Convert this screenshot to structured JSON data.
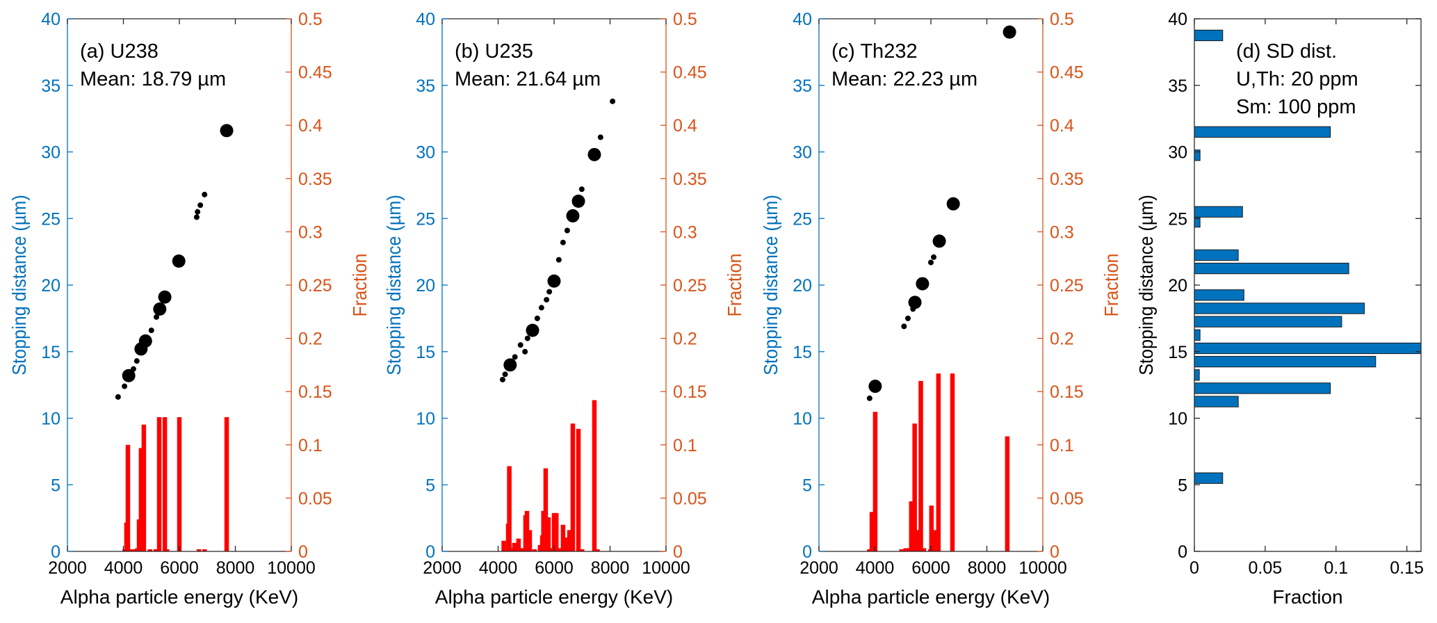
{
  "colors": {
    "left_axis": "#0072BD",
    "right_axis": "#D95319",
    "hist_bar": "#FF0000",
    "scatter": "#000000",
    "sd_bar": "#0072BD",
    "frame": "#262626"
  },
  "chart_data": [
    {
      "id": "a",
      "type": "scatter+bar",
      "annotation": [
        "(a)  U238",
        "Mean: 18.79 µm"
      ],
      "xlabel": "Alpha particle energy (KeV)",
      "ylabel": "Stopping distance (µm)",
      "y2label": "Fraction",
      "xlim": [
        2000,
        10000
      ],
      "ylim": [
        0,
        40
      ],
      "y2lim": [
        0,
        0.5
      ],
      "xticks": [
        2000,
        4000,
        6000,
        8000,
        10000
      ],
      "xtick_labels": [
        "2000",
        "4000",
        "6000",
        "8000",
        "10000"
      ],
      "yticks": [
        0,
        5,
        10,
        15,
        20,
        25,
        30,
        35,
        40
      ],
      "ytick_labels": [
        "0",
        "5",
        "10",
        "15",
        "20",
        "25",
        "30",
        "35",
        "40"
      ],
      "y2ticks": [
        0,
        0.05,
        0.1,
        0.15,
        0.2,
        0.25,
        0.3,
        0.35,
        0.4,
        0.45,
        0.5
      ],
      "y2tick_labels": [
        "0",
        "0.05",
        "0.1",
        "0.15",
        "0.2",
        "0.25",
        "0.3",
        "0.35",
        "0.4",
        "0.45",
        "0.5"
      ],
      "scatter": [
        {
          "x": 3810,
          "y": 11.6,
          "size": "small"
        },
        {
          "x": 4040,
          "y": 12.4,
          "size": "small"
        },
        {
          "x": 4190,
          "y": 13.2,
          "size": "large"
        },
        {
          "x": 4360,
          "y": 13.7,
          "size": "small"
        },
        {
          "x": 4480,
          "y": 14.3,
          "size": "small"
        },
        {
          "x": 4630,
          "y": 15.2,
          "size": "large"
        },
        {
          "x": 4790,
          "y": 15.8,
          "size": "large"
        },
        {
          "x": 5000,
          "y": 16.6,
          "size": "small"
        },
        {
          "x": 5180,
          "y": 17.6,
          "size": "small"
        },
        {
          "x": 5300,
          "y": 18.2,
          "size": "large"
        },
        {
          "x": 5480,
          "y": 19.1,
          "size": "large"
        },
        {
          "x": 5980,
          "y": 21.8,
          "size": "large"
        },
        {
          "x": 6620,
          "y": 25.1,
          "size": "small"
        },
        {
          "x": 6650,
          "y": 25.5,
          "size": "small"
        },
        {
          "x": 6750,
          "y": 26.0,
          "size": "small"
        },
        {
          "x": 6900,
          "y": 26.8,
          "size": "small"
        },
        {
          "x": 7690,
          "y": 31.6,
          "size": "large"
        }
      ],
      "bars": [
        {
          "x": 4050,
          "y": 0.002
        },
        {
          "x": 4110,
          "y": 0.027
        },
        {
          "x": 4160,
          "y": 0.1
        },
        {
          "x": 4300,
          "y": 0.002
        },
        {
          "x": 4400,
          "y": 0.002
        },
        {
          "x": 4500,
          "y": 0.003
        },
        {
          "x": 4560,
          "y": 0.03
        },
        {
          "x": 4630,
          "y": 0.097
        },
        {
          "x": 4730,
          "y": 0.119
        },
        {
          "x": 4950,
          "y": 0.002
        },
        {
          "x": 5150,
          "y": 0.002
        },
        {
          "x": 5280,
          "y": 0.126
        },
        {
          "x": 5480,
          "y": 0.126
        },
        {
          "x": 5560,
          "y": 0.002
        },
        {
          "x": 6000,
          "y": 0.126
        },
        {
          "x": 6700,
          "y": 0.002
        },
        {
          "x": 6900,
          "y": 0.002
        },
        {
          "x": 7690,
          "y": 0.126
        }
      ]
    },
    {
      "id": "b",
      "type": "scatter+bar",
      "annotation": [
        "(b)  U235",
        "Mean: 21.64 µm"
      ],
      "xlabel": "Alpha particle energy (KeV)",
      "ylabel": "Stopping distance (µm)",
      "y2label": "Fraction",
      "xlim": [
        2000,
        10000
      ],
      "ylim": [
        0,
        40
      ],
      "y2lim": [
        0,
        0.5
      ],
      "xticks": [
        2000,
        4000,
        6000,
        8000,
        10000
      ],
      "xtick_labels": [
        "2000",
        "4000",
        "6000",
        "8000",
        "10000"
      ],
      "yticks": [
        0,
        5,
        10,
        15,
        20,
        25,
        30,
        35,
        40
      ],
      "ytick_labels": [
        "0",
        "5",
        "10",
        "15",
        "20",
        "25",
        "30",
        "35",
        "40"
      ],
      "y2ticks": [
        0,
        0.05,
        0.1,
        0.15,
        0.2,
        0.25,
        0.3,
        0.35,
        0.4,
        0.45,
        0.5
      ],
      "y2tick_labels": [
        "0",
        "0.05",
        "0.1",
        "0.15",
        "0.2",
        "0.25",
        "0.3",
        "0.35",
        "0.4",
        "0.45",
        "0.5"
      ],
      "scatter": [
        {
          "x": 4160,
          "y": 12.9,
          "size": "small"
        },
        {
          "x": 4250,
          "y": 13.3,
          "size": "small"
        },
        {
          "x": 4430,
          "y": 14.0,
          "size": "large"
        },
        {
          "x": 4600,
          "y": 14.6,
          "size": "small"
        },
        {
          "x": 4800,
          "y": 15.5,
          "size": "small"
        },
        {
          "x": 4960,
          "y": 15.0,
          "size": "small"
        },
        {
          "x": 5050,
          "y": 16.0,
          "size": "small"
        },
        {
          "x": 5230,
          "y": 16.6,
          "size": "large"
        },
        {
          "x": 5400,
          "y": 17.5,
          "size": "small"
        },
        {
          "x": 5550,
          "y": 18.3,
          "size": "small"
        },
        {
          "x": 5730,
          "y": 18.9,
          "size": "small"
        },
        {
          "x": 5830,
          "y": 19.5,
          "size": "small"
        },
        {
          "x": 6000,
          "y": 20.3,
          "size": "large"
        },
        {
          "x": 6170,
          "y": 21.9,
          "size": "small"
        },
        {
          "x": 6320,
          "y": 23.2,
          "size": "small"
        },
        {
          "x": 6470,
          "y": 24.1,
          "size": "small"
        },
        {
          "x": 6670,
          "y": 25.2,
          "size": "large"
        },
        {
          "x": 6870,
          "y": 26.3,
          "size": "large"
        },
        {
          "x": 6990,
          "y": 27.2,
          "size": "small"
        },
        {
          "x": 7440,
          "y": 29.8,
          "size": "large"
        },
        {
          "x": 7660,
          "y": 31.1,
          "size": "small"
        },
        {
          "x": 8090,
          "y": 33.8,
          "size": "small"
        }
      ],
      "bars": [
        {
          "x": 4200,
          "y": 0.01
        },
        {
          "x": 4360,
          "y": 0.026
        },
        {
          "x": 4400,
          "y": 0.08
        },
        {
          "x": 4480,
          "y": 0.003
        },
        {
          "x": 4580,
          "y": 0.008
        },
        {
          "x": 4650,
          "y": 0.006
        },
        {
          "x": 4730,
          "y": 0.012
        },
        {
          "x": 4850,
          "y": 0.003
        },
        {
          "x": 4980,
          "y": 0.034
        },
        {
          "x": 5030,
          "y": 0.038
        },
        {
          "x": 5130,
          "y": 0.02
        },
        {
          "x": 5300,
          "y": 0.002
        },
        {
          "x": 5500,
          "y": 0.006
        },
        {
          "x": 5580,
          "y": 0.015
        },
        {
          "x": 5620,
          "y": 0.038
        },
        {
          "x": 5700,
          "y": 0.078
        },
        {
          "x": 5800,
          "y": 0.032
        },
        {
          "x": 5900,
          "y": 0.003
        },
        {
          "x": 6000,
          "y": 0.036
        },
        {
          "x": 6080,
          "y": 0.036
        },
        {
          "x": 6200,
          "y": 0.003
        },
        {
          "x": 6320,
          "y": 0.025
        },
        {
          "x": 6450,
          "y": 0.013
        },
        {
          "x": 6550,
          "y": 0.02
        },
        {
          "x": 6670,
          "y": 0.12
        },
        {
          "x": 6870,
          "y": 0.115
        },
        {
          "x": 7000,
          "y": 0.002
        },
        {
          "x": 7440,
          "y": 0.142
        },
        {
          "x": 7550,
          "y": 0.002
        }
      ]
    },
    {
      "id": "c",
      "type": "scatter+bar",
      "annotation": [
        "(c)  Th232",
        "Mean: 22.23 µm"
      ],
      "xlabel": "Alpha particle energy (KeV)",
      "ylabel": "Stopping distance (µm)",
      "y2label": "Fraction",
      "xlim": [
        2000,
        10000
      ],
      "ylim": [
        0,
        40
      ],
      "y2lim": [
        0,
        0.5
      ],
      "xticks": [
        2000,
        4000,
        6000,
        8000,
        10000
      ],
      "xtick_labels": [
        "2000",
        "4000",
        "6000",
        "8000",
        "10000"
      ],
      "yticks": [
        0,
        5,
        10,
        15,
        20,
        25,
        30,
        35,
        40
      ],
      "ytick_labels": [
        "0",
        "5",
        "10",
        "15",
        "20",
        "25",
        "30",
        "35",
        "40"
      ],
      "y2ticks": [
        0,
        0.05,
        0.1,
        0.15,
        0.2,
        0.25,
        0.3,
        0.35,
        0.4,
        0.45,
        0.5
      ],
      "y2tick_labels": [
        "0",
        "0.05",
        "0.1",
        "0.15",
        "0.2",
        "0.25",
        "0.3",
        "0.35",
        "0.4",
        "0.45",
        "0.5"
      ],
      "scatter": [
        {
          "x": 3810,
          "y": 11.5,
          "size": "small"
        },
        {
          "x": 4010,
          "y": 12.4,
          "size": "large"
        },
        {
          "x": 5040,
          "y": 16.9,
          "size": "small"
        },
        {
          "x": 5180,
          "y": 17.5,
          "size": "small"
        },
        {
          "x": 5360,
          "y": 18.2,
          "size": "small"
        },
        {
          "x": 5430,
          "y": 18.7,
          "size": "large"
        },
        {
          "x": 5700,
          "y": 20.1,
          "size": "large"
        },
        {
          "x": 6000,
          "y": 21.7,
          "size": "small"
        },
        {
          "x": 6100,
          "y": 22.1,
          "size": "small"
        },
        {
          "x": 6300,
          "y": 23.3,
          "size": "large"
        },
        {
          "x": 6800,
          "y": 26.1,
          "size": "large"
        },
        {
          "x": 8810,
          "y": 39.0,
          "size": "large"
        }
      ],
      "bars": [
        {
          "x": 3800,
          "y": 0.002
        },
        {
          "x": 3890,
          "y": 0.037
        },
        {
          "x": 4010,
          "y": 0.131
        },
        {
          "x": 4950,
          "y": 0.002
        },
        {
          "x": 5100,
          "y": 0.003
        },
        {
          "x": 5200,
          "y": 0.003
        },
        {
          "x": 5300,
          "y": 0.047
        },
        {
          "x": 5420,
          "y": 0.12
        },
        {
          "x": 5500,
          "y": 0.02
        },
        {
          "x": 5560,
          "y": 0.003
        },
        {
          "x": 5640,
          "y": 0.16
        },
        {
          "x": 5750,
          "y": 0.003
        },
        {
          "x": 5980,
          "y": 0.002
        },
        {
          "x": 6020,
          "y": 0.043
        },
        {
          "x": 6120,
          "y": 0.02
        },
        {
          "x": 6270,
          "y": 0.167
        },
        {
          "x": 6770,
          "y": 0.167
        },
        {
          "x": 8730,
          "y": 0.108
        }
      ]
    },
    {
      "id": "d",
      "type": "bar",
      "orientation": "horizontal",
      "annotation": [
        "(d)  SD dist.",
        "U,Th: 20 ppm",
        "Sm: 100 ppm"
      ],
      "xlabel": "Fraction",
      "ylabel": "Stopping distance (µm)",
      "xlim": [
        0,
        0.16
      ],
      "ylim": [
        0,
        40
      ],
      "xticks": [
        0,
        0.05,
        0.1,
        0.15
      ],
      "xtick_labels": [
        "0",
        "0.05",
        "0.1",
        "0.15"
      ],
      "yticks": [
        0,
        5,
        10,
        15,
        20,
        25,
        30,
        35,
        40
      ],
      "ytick_labels": [
        "0",
        "5",
        "10",
        "15",
        "20",
        "25",
        "30",
        "35",
        "40"
      ],
      "bars": [
        {
          "y": 5.5,
          "value": 0.02
        },
        {
          "y": 11.25,
          "value": 0.031
        },
        {
          "y": 12.25,
          "value": 0.096
        },
        {
          "y": 13.25,
          "value": 0.0035
        },
        {
          "y": 14.25,
          "value": 0.128
        },
        {
          "y": 15.25,
          "value": 0.16
        },
        {
          "y": 16.25,
          "value": 0.004
        },
        {
          "y": 17.25,
          "value": 0.104
        },
        {
          "y": 18.25,
          "value": 0.12
        },
        {
          "y": 19.25,
          "value": 0.035
        },
        {
          "y": 21.25,
          "value": 0.109
        },
        {
          "y": 22.25,
          "value": 0.031
        },
        {
          "y": 24.75,
          "value": 0.004
        },
        {
          "y": 25.5,
          "value": 0.034
        },
        {
          "y": 29.75,
          "value": 0.004
        },
        {
          "y": 31.5,
          "value": 0.096
        },
        {
          "y": 38.75,
          "value": 0.02
        }
      ]
    }
  ]
}
